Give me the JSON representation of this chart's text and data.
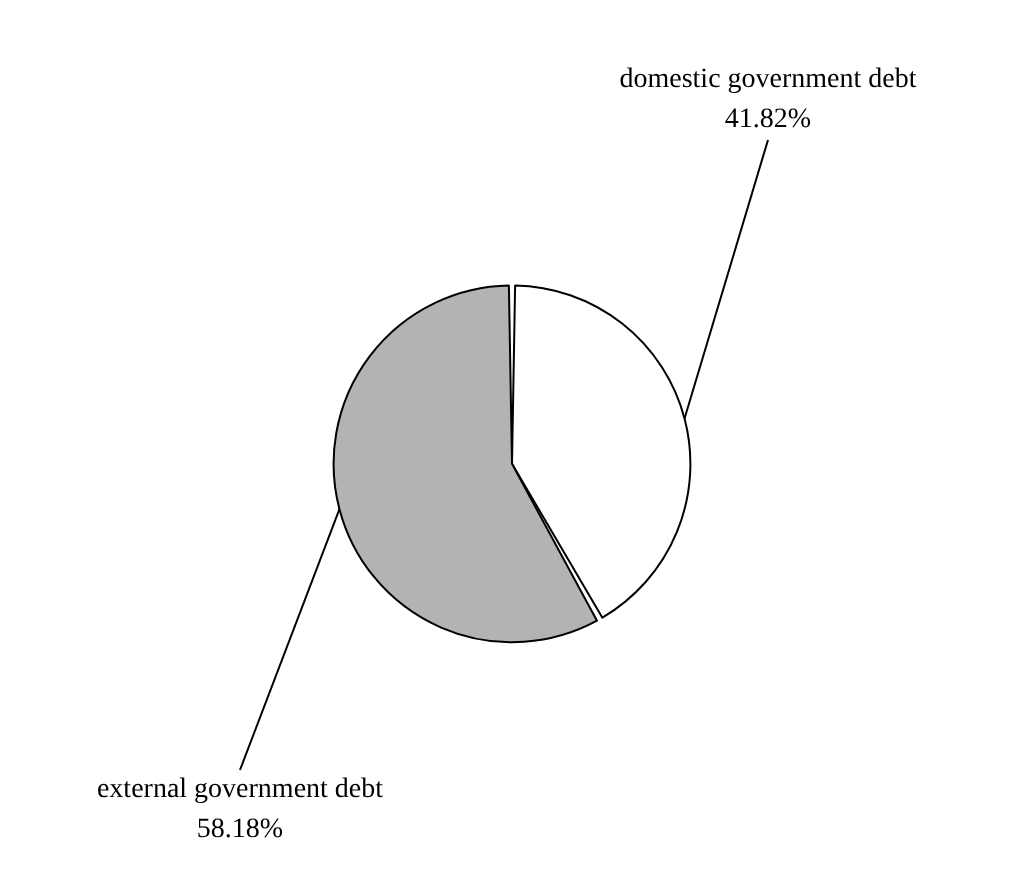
{
  "chart_data": {
    "type": "pie",
    "categories": [
      "domestic government debt",
      "external government debt"
    ],
    "values": [
      41.82,
      58.18
    ],
    "colors": [
      "#ffffff",
      "#b3b3b3"
    ],
    "value_labels": [
      "41.82%",
      "58.18%"
    ]
  }
}
